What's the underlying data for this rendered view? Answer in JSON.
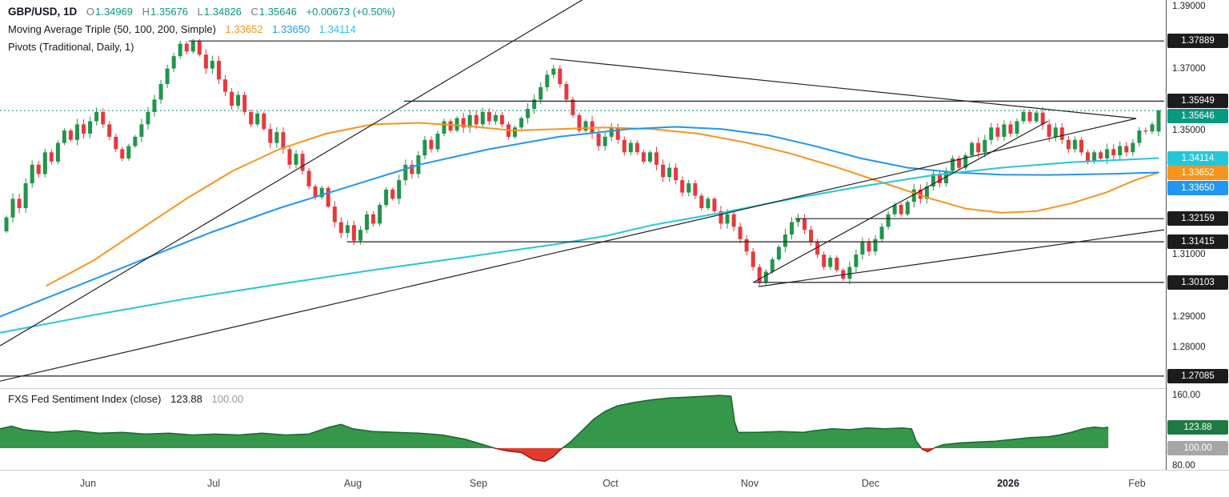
{
  "header": {
    "symbol": "GBP/USD, 1D",
    "ohlc": [
      {
        "k": "O",
        "v": "1.34969"
      },
      {
        "k": "H",
        "v": "1.35676"
      },
      {
        "k": "L",
        "v": "1.34826"
      },
      {
        "k": "C",
        "v": "1.35646"
      }
    ],
    "change": "+0.00673 (+0.50%)",
    "ma_title": "Moving Average Triple (50, 100, 200, Simple)",
    "ma_values": [
      "1.33652",
      "1.33650",
      "1.34114"
    ],
    "pivots_title": "Pivots (Traditional, Daily, 1)"
  },
  "sentiment_header": {
    "title": "FXS Fed Sentiment Index (close)",
    "value": "123.88",
    "baseline": "100.00"
  },
  "colors": {
    "up": "#22954a",
    "down": "#e8383d",
    "teal": "#089981",
    "ma50": "#f7941d",
    "ma100": "#2196f3",
    "ma200": "#26c6da",
    "badge_dark": "#1c1c1c",
    "badge_gray": "#a6a6a6",
    "sent_green_fill": "#36964a",
    "sent_green_line": "#14682e",
    "sent_red_fill": "#e23b2e",
    "sent_red_line": "#8f1d12",
    "sent_badge_green": "#1d7a43",
    "muted_text": "#9598a1",
    "axis_text": "#1b1f27",
    "line_dark": "#222222",
    "separator": "#c9cdd6"
  },
  "chart_data": [
    {
      "type": "candlestick",
      "title": "GBP/USD, 1D",
      "pane": "main",
      "y_domain": [
        1.2672,
        1.3921
      ],
      "first_open": 1.3175,
      "last_candle": {
        "open": 1.34969,
        "high": 1.35676,
        "low": 1.34826,
        "close": 1.35646
      },
      "closes": [
        1.322,
        1.328,
        1.325,
        1.333,
        1.339,
        1.336,
        1.343,
        1.34,
        1.346,
        1.35,
        1.347,
        1.352,
        1.349,
        1.353,
        1.356,
        1.352,
        1.348,
        1.344,
        1.341,
        1.345,
        1.348,
        1.352,
        1.356,
        1.36,
        1.365,
        1.37,
        1.374,
        1.378,
        1.3755,
        1.3789,
        1.3745,
        1.37,
        1.3725,
        1.3665,
        1.3625,
        1.358,
        1.3615,
        1.356,
        1.352,
        1.3555,
        1.3505,
        1.346,
        1.3495,
        1.344,
        1.339,
        1.3425,
        1.337,
        1.332,
        1.3285,
        1.3315,
        1.3255,
        1.3205,
        1.317,
        1.3195,
        1.3145,
        1.318,
        1.323,
        1.32,
        1.326,
        1.331,
        1.328,
        1.334,
        1.339,
        1.336,
        1.342,
        1.347,
        1.344,
        1.349,
        1.353,
        1.35,
        1.354,
        1.351,
        1.355,
        1.352,
        1.356,
        1.353,
        1.355,
        1.352,
        1.348,
        1.351,
        1.354,
        1.357,
        1.36,
        1.364,
        1.368,
        1.37,
        1.365,
        1.36,
        1.355,
        1.35,
        1.353,
        1.349,
        1.345,
        1.348,
        1.351,
        1.347,
        1.343,
        1.346,
        1.343,
        1.34,
        1.343,
        1.339,
        1.335,
        1.338,
        1.334,
        1.33,
        1.333,
        1.329,
        1.325,
        1.328,
        1.324,
        1.32,
        1.323,
        1.319,
        1.315,
        1.311,
        1.306,
        1.301,
        1.3045,
        1.3085,
        1.3125,
        1.3165,
        1.3205,
        1.3216,
        1.318,
        1.314,
        1.31,
        1.306,
        1.309,
        1.305,
        1.3022,
        1.306,
        1.31,
        1.314,
        1.311,
        1.315,
        1.319,
        1.323,
        1.326,
        1.323,
        1.327,
        1.331,
        1.328,
        1.332,
        1.336,
        1.333,
        1.337,
        1.341,
        1.338,
        1.342,
        1.346,
        1.343,
        1.347,
        1.351,
        1.348,
        1.352,
        1.349,
        1.353,
        1.356,
        1.353,
        1.3558,
        1.352,
        1.348,
        1.351,
        1.347,
        1.344,
        1.347,
        1.343,
        1.34,
        1.343,
        1.341,
        1.344,
        1.342,
        1.345,
        1.343,
        1.346,
        1.35,
        1.3497,
        1.352,
        1.35646
      ],
      "overlays": {
        "sma": [
          {
            "name": "SMA 50",
            "color": "#f7941d",
            "points": [
              [
                0.04,
                1.3
              ],
              [
                0.08,
                1.308
              ],
              [
                0.12,
                1.318
              ],
              [
                0.16,
                1.328
              ],
              [
                0.2,
                1.337
              ],
              [
                0.24,
                1.344
              ],
              [
                0.28,
                1.349
              ],
              [
                0.32,
                1.352
              ],
              [
                0.36,
                1.3525
              ],
              [
                0.4,
                1.3515
              ],
              [
                0.44,
                1.35
              ],
              [
                0.48,
                1.3505
              ],
              [
                0.52,
                1.351
              ],
              [
                0.56,
                1.3505
              ],
              [
                0.6,
                1.349
              ],
              [
                0.64,
                1.3462
              ],
              [
                0.68,
                1.3425
              ],
              [
                0.72,
                1.338
              ],
              [
                0.76,
                1.333
              ],
              [
                0.8,
                1.328
              ],
              [
                0.83,
                1.3248
              ],
              [
                0.86,
                1.3235
              ],
              [
                0.89,
                1.324
              ],
              [
                0.92,
                1.3265
              ],
              [
                0.95,
                1.33
              ],
              [
                0.975,
                1.334
              ],
              [
                0.995,
                1.3364
              ]
            ]
          },
          {
            "name": "SMA 100",
            "color": "#2196f3",
            "points": [
              [
                0,
                1.29
              ],
              [
                0.06,
                1.299
              ],
              [
                0.12,
                1.308
              ],
              [
                0.18,
                1.317
              ],
              [
                0.24,
                1.325
              ],
              [
                0.3,
                1.332
              ],
              [
                0.36,
                1.339
              ],
              [
                0.42,
                1.344
              ],
              [
                0.48,
                1.348
              ],
              [
                0.54,
                1.3505
              ],
              [
                0.58,
                1.3512
              ],
              [
                0.62,
                1.3505
              ],
              [
                0.66,
                1.3485
              ],
              [
                0.7,
                1.345
              ],
              [
                0.74,
                1.341
              ],
              [
                0.78,
                1.338
              ],
              [
                0.82,
                1.3365
              ],
              [
                0.86,
                1.3358
              ],
              [
                0.9,
                1.3357
              ],
              [
                0.95,
                1.336
              ],
              [
                0.995,
                1.3365
              ]
            ]
          },
          {
            "name": "SMA 200",
            "color": "#26c6da",
            "points": [
              [
                0,
                1.2848
              ],
              [
                0.08,
                1.2905
              ],
              [
                0.16,
                1.2958
              ],
              [
                0.24,
                1.3005
              ],
              [
                0.32,
                1.305
              ],
              [
                0.4,
                1.3092
              ],
              [
                0.48,
                1.3135
              ],
              [
                0.52,
                1.316
              ],
              [
                0.56,
                1.3195
              ],
              [
                0.62,
                1.3235
              ],
              [
                0.68,
                1.328
              ],
              [
                0.74,
                1.332
              ],
              [
                0.8,
                1.3355
              ],
              [
                0.86,
                1.338
              ],
              [
                0.92,
                1.3398
              ],
              [
                0.995,
                1.3411
              ]
            ]
          }
        ],
        "trendlines": [
          {
            "x1": 0,
            "p1": 1.2806,
            "x2": 0.5005,
            "p2": 1.3922
          },
          {
            "x1": 0,
            "p1": 1.2692,
            "x2": 0.976,
            "p2": 1.3539
          },
          {
            "x1": 0.4729,
            "p1": 1.3732,
            "x2": 0.976,
            "p2": 1.3539
          },
          {
            "x1": 0.6468,
            "p1": 1.301,
            "x2": 0.9,
            "p2": 1.353
          },
          {
            "x1": 0.6515,
            "p1": 1.2997,
            "x2": 1.0,
            "p2": 1.318
          }
        ],
        "pivot_rays": [
          {
            "price": 1.37889,
            "from": 0.162
          },
          {
            "price": 1.35949,
            "from": 0.347
          },
          {
            "price": 1.32159,
            "from": 0.683
          },
          {
            "price": 1.31415,
            "from": 0.298
          },
          {
            "price": 1.30103,
            "from": 0.648
          },
          {
            "price": 1.27085,
            "from": 0.0
          }
        ],
        "current_price_line": 1.35646
      },
      "price_axis": {
        "plain": [
          {
            "text": "1.39000",
            "price": 1.39
          },
          {
            "text": "1.37000",
            "price": 1.37
          },
          {
            "text": "1.35000",
            "price": 1.35
          },
          {
            "text": "1.31000",
            "price": 1.31
          },
          {
            "text": "1.29000",
            "price": 1.29
          },
          {
            "text": "1.28000",
            "price": 1.28
          }
        ],
        "badges": [
          {
            "text": "1.37889",
            "bg": "#1c1c1c",
            "price": 1.37889
          },
          {
            "text": "1.35949",
            "bg": "#1c1c1c",
            "price": 1.35949
          },
          {
            "text": "1.35646",
            "bg": "#089981",
            "price": 1.35646
          },
          {
            "text": "1.34114",
            "bg": "#26c6da",
            "price": 1.34114
          },
          {
            "text": "1.33652",
            "bg": "#f7941d",
            "price": 1.33652
          },
          {
            "text": "1.33650",
            "bg": "#2196f3",
            "price": 1.3365
          },
          {
            "text": "1.32159",
            "bg": "#1c1c1c",
            "price": 1.32159
          },
          {
            "text": "1.31415",
            "bg": "#1c1c1c",
            "price": 1.31415
          },
          {
            "text": "1.30103",
            "bg": "#1c1c1c",
            "price": 1.30103
          },
          {
            "text": "1.27085",
            "bg": "#1c1c1c",
            "price": 1.27085
          }
        ]
      },
      "x_ticks": [
        {
          "text": "Jun",
          "x": 0.0756,
          "bold": false
        },
        {
          "text": "Jul",
          "x": 0.1835,
          "bold": false
        },
        {
          "text": "Aug",
          "x": 0.3031,
          "bold": false
        },
        {
          "text": "Sep",
          "x": 0.411,
          "bold": false
        },
        {
          "text": "Oct",
          "x": 0.5244,
          "bold": false
        },
        {
          "text": "Nov",
          "x": 0.644,
          "bold": false
        },
        {
          "text": "Dec",
          "x": 0.7478,
          "bold": false
        },
        {
          "text": "2026",
          "x": 0.866,
          "bold": true
        },
        {
          "text": "Feb",
          "x": 0.9766,
          "bold": false
        }
      ]
    },
    {
      "type": "area",
      "title": "FXS Fed Sentiment Index (close)",
      "pane": "sub",
      "y_domain": [
        77.3,
        167.3
      ],
      "baseline": 100,
      "last_value": 123.88,
      "points": [
        [
          0,
          122
        ],
        [
          0.01,
          125
        ],
        [
          0.02,
          121
        ],
        [
          0.045,
          118
        ],
        [
          0.065,
          120
        ],
        [
          0.085,
          117
        ],
        [
          0.105,
          118
        ],
        [
          0.125,
          116
        ],
        [
          0.145,
          117
        ],
        [
          0.165,
          115
        ],
        [
          0.185,
          116
        ],
        [
          0.205,
          115
        ],
        [
          0.225,
          117
        ],
        [
          0.245,
          115
        ],
        [
          0.265,
          116
        ],
        [
          0.283,
          124
        ],
        [
          0.293,
          127
        ],
        [
          0.303,
          122
        ],
        [
          0.32,
          119
        ],
        [
          0.34,
          118
        ],
        [
          0.36,
          117
        ],
        [
          0.38,
          115
        ],
        [
          0.4,
          110
        ],
        [
          0.415,
          104
        ],
        [
          0.425,
          100
        ],
        [
          0.435,
          97
        ],
        [
          0.448,
          95
        ],
        [
          0.458,
          87
        ],
        [
          0.468,
          85
        ],
        [
          0.475,
          90
        ],
        [
          0.482,
          99
        ],
        [
          0.49,
          107
        ],
        [
          0.5,
          120
        ],
        [
          0.51,
          133
        ],
        [
          0.52,
          142
        ],
        [
          0.53,
          148
        ],
        [
          0.545,
          152
        ],
        [
          0.56,
          155
        ],
        [
          0.575,
          157
        ],
        [
          0.59,
          158
        ],
        [
          0.605,
          159
        ],
        [
          0.618,
          160
        ],
        [
          0.628,
          159
        ],
        [
          0.631,
          130
        ],
        [
          0.634,
          118
        ],
        [
          0.65,
          118
        ],
        [
          0.67,
          119
        ],
        [
          0.69,
          118
        ],
        [
          0.7,
          120
        ],
        [
          0.715,
          122
        ],
        [
          0.73,
          121
        ],
        [
          0.745,
          123
        ],
        [
          0.76,
          122
        ],
        [
          0.775,
          123
        ],
        [
          0.783,
          122
        ],
        [
          0.787,
          108
        ],
        [
          0.792,
          99
        ],
        [
          0.797,
          96
        ],
        [
          0.802,
          100
        ],
        [
          0.81,
          104
        ],
        [
          0.825,
          106
        ],
        [
          0.84,
          107
        ],
        [
          0.855,
          108
        ],
        [
          0.87,
          110
        ],
        [
          0.885,
          112
        ],
        [
          0.9,
          113
        ],
        [
          0.91,
          115
        ],
        [
          0.92,
          118
        ],
        [
          0.93,
          122
        ],
        [
          0.94,
          124
        ],
        [
          0.948,
          123
        ],
        [
          0.952,
          123.88
        ]
      ],
      "axis": {
        "plain": [
          {
            "text": "160.00",
            "value": 160
          },
          {
            "text": "80.00",
            "value": 80
          }
        ],
        "badges": [
          {
            "text": "123.88",
            "bg": "#1d7a43",
            "value": 123.88
          },
          {
            "text": "100.00",
            "bg": "#a6a6a6",
            "value": 100
          }
        ]
      }
    }
  ]
}
